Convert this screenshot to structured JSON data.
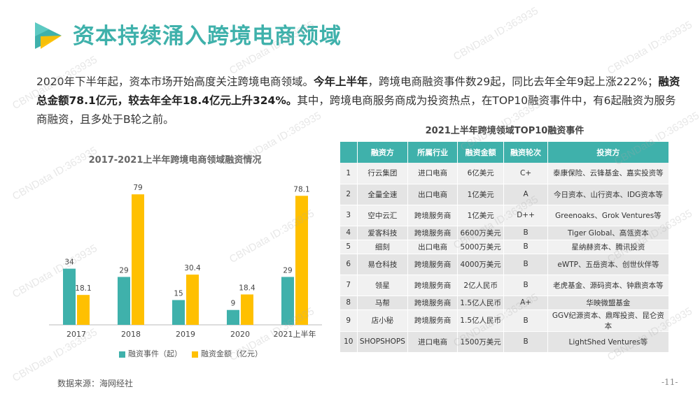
{
  "title": "资本持续涌入跨境电商领域",
  "intro": {
    "p1": "2020年下半年起，资本市场开始高度关注跨境电商领域。",
    "p2": "今年上半年",
    "p3": "，跨境电商融资事件数29起，同比去年全年9起上涨222%；",
    "p4": "融资总金额78.1亿元，较去年全年18.4亿元上升324%。",
    "p5": "其中，跨境电商服务商成为投资热点，在TOP10融资事件中，有6起融资为服务商融资，且多处于B轮之前。"
  },
  "chart_data": {
    "type": "bar",
    "title": "2017-2021上半年跨境电商领域融资情况",
    "categories": [
      "2017",
      "2018",
      "2019",
      "2020",
      "2021上半年"
    ],
    "series": [
      {
        "name": "融资事件（起）",
        "values": [
          34,
          29,
          15,
          9,
          29
        ],
        "color": "#3fb1ab"
      },
      {
        "name": "融资金额（亿元）",
        "values": [
          18.1,
          79,
          30.4,
          18.4,
          78.1
        ],
        "color": "#ffc000"
      }
    ],
    "ylim": [
      0,
      85
    ],
    "legend_position": "bottom"
  },
  "table": {
    "title": "2021上半年跨境领域TOP10融资事件",
    "headers": [
      "",
      "融资方",
      "所属行业",
      "融资金额",
      "融资轮次",
      "投资方"
    ],
    "rows": [
      [
        "1",
        "行云集团",
        "进口电商",
        "6亿美元",
        "C+",
        "泰康保险、云锋基金、嘉实投资等"
      ],
      [
        "2",
        "全量全速",
        "出口电商",
        "1亿美元",
        "A",
        "今日资本、山行资本、IDG资本等"
      ],
      [
        "3",
        "空中云汇",
        "跨境服务商",
        "1亿美元",
        "D++",
        "Greenoaks、Grok Ventures等"
      ],
      [
        "4",
        "爱客科技",
        "跨境服务商",
        "6600万美元",
        "B",
        "Tiger Global、高瓴资本"
      ],
      [
        "5",
        "细刻",
        "出口电商",
        "5000万美元",
        "B",
        "星纳赫资本、腾讯投资"
      ],
      [
        "6",
        "易仓科技",
        "跨境服务商",
        "4000万美元",
        "B",
        "eWTP、五岳资本、创世伙伴等"
      ],
      [
        "7",
        "领星",
        "跨境服务商",
        "2亿人民币",
        "B",
        "老虎基金、源码资本、钟鼎资本等"
      ],
      [
        "8",
        "马帮",
        "跨境服务商",
        "1.5亿人民币",
        "A+",
        "华映微盟基金"
      ],
      [
        "9",
        "店小秘",
        "跨境服务商",
        "1.5亿人民币",
        "B",
        "GGV纪源资本、鼎晖投资、昆仑资本"
      ],
      [
        "10",
        "SHOPSHOPS",
        "进口电商",
        "1500万美元",
        "B",
        "LightShed Ventures等"
      ]
    ]
  },
  "source": "数据来源：海网经社",
  "page_number": "-11-",
  "watermark": "CBNData ID:363935",
  "colors": {
    "accent": "#3fb1ab",
    "gold": "#ffc000"
  }
}
